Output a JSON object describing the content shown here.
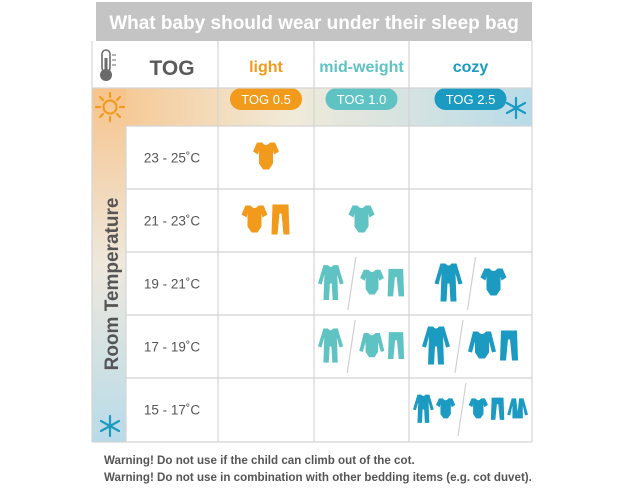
{
  "title": "What baby should wear under their sleep bag",
  "header": {
    "tog_label": "TOG",
    "thermometer_icon": "thermometer-icon"
  },
  "columns": [
    {
      "name": "light",
      "tog": "TOG 0.5",
      "color": "#f29a1c"
    },
    {
      "name": "mid-weight",
      "tog": "TOG 1.0",
      "color": "#5fc2c3"
    },
    {
      "name": "cozy",
      "tog": "TOG 2.5",
      "color": "#1b9bc1"
    }
  ],
  "axis_label": "Room Temperature",
  "hot_icon": "sun-icon",
  "cold_icon": "snowflake-icon",
  "rows": [
    {
      "temp": "23 - 25˚C",
      "cells": [
        [
          "bodysuit"
        ],
        [],
        []
      ]
    },
    {
      "temp": "21 - 23˚C",
      "cells": [
        [
          "bodysuit",
          "leggings"
        ],
        [
          "bodysuit"
        ],
        []
      ]
    },
    {
      "temp": "19 - 21˚C",
      "cells": [
        [],
        [
          "romper",
          "|",
          "bodysuit",
          "leggings"
        ],
        [
          "romper",
          "|",
          "bodysuit"
        ]
      ]
    },
    {
      "temp": "17 - 19˚C",
      "cells": [
        [],
        [
          "romper",
          "|",
          "longsleeve",
          "leggings"
        ],
        [
          "romper",
          "|",
          "longsleeve",
          "leggings"
        ]
      ]
    },
    {
      "temp": "15 - 17˚C",
      "cells": [
        [],
        [],
        [
          "romper",
          "bodysuit",
          "|",
          "bodysuit",
          "leggings",
          "cardigan"
        ]
      ]
    }
  ],
  "warnings": [
    "Warning! Do not use if the child can climb out of the cot.",
    "Warning! Do not use in combination with other bedding items (e.g. cot duvet)."
  ],
  "colors": {
    "title_bg": "#c4c4c4",
    "grid": "#d4d4d4",
    "warm": "#f6c58a",
    "cool": "#a9d4e8",
    "text": "#555555"
  }
}
